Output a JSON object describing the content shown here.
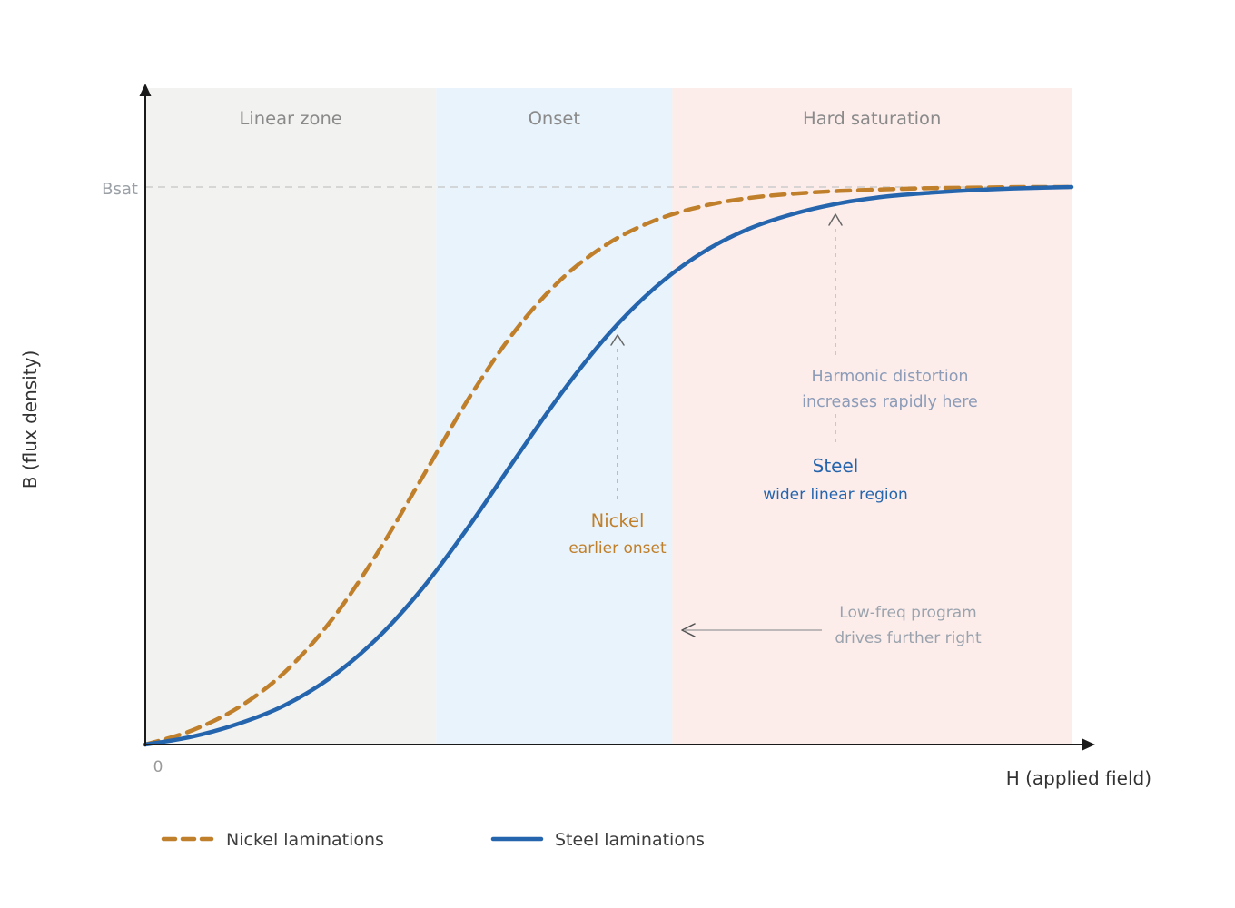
{
  "chart_data": {
    "type": "line",
    "title": "",
    "xlabel": "H (applied field)",
    "ylabel": "B (flux density)",
    "origin_label": "0",
    "bsat": {
      "label": "Bsat",
      "value": 1
    },
    "xlim": [
      0,
      1
    ],
    "ylim": [
      0,
      1.15
    ],
    "grid": false,
    "legend_position": "bottom",
    "x": [
      0,
      0.05,
      0.1,
      0.15,
      0.2,
      0.25,
      0.3,
      0.35,
      0.4,
      0.45,
      0.5,
      0.55,
      0.6,
      0.65,
      0.7,
      0.75,
      0.8,
      0.85,
      0.9,
      0.95,
      1
    ],
    "series": [
      {
        "name": "Nickel laminations",
        "color": "#c07f2a",
        "dash": true,
        "values": [
          0,
          0.025,
          0.066,
          0.129,
          0.221,
          0.342,
          0.482,
          0.623,
          0.744,
          0.836,
          0.899,
          0.94,
          0.965,
          0.98,
          0.988,
          0.993,
          0.996,
          0.998,
          0.999,
          1.0,
          1.0
        ]
      },
      {
        "name": "Steel laminations",
        "color": "#2565ae",
        "dash": false,
        "values": [
          0,
          0.014,
          0.037,
          0.07,
          0.12,
          0.19,
          0.282,
          0.393,
          0.514,
          0.632,
          0.736,
          0.819,
          0.881,
          0.924,
          0.952,
          0.971,
          0.983,
          0.99,
          0.995,
          0.998,
          1.0
        ]
      }
    ],
    "zones": [
      {
        "label": "Linear zone",
        "from": 0,
        "to": 0.314,
        "color": "#f2f2f0"
      },
      {
        "label": "Onset",
        "from": 0.314,
        "to": 0.569,
        "color": "#e9f3fb"
      },
      {
        "label": "Hard saturation",
        "from": 0.569,
        "to": 1,
        "color": "#fcedeb"
      }
    ],
    "annotations": {
      "nickel": {
        "line1": "Nickel",
        "line2": "earlier onset",
        "color": "#c07f2a"
      },
      "steel": {
        "line1": "Steel",
        "line2": "wider linear region",
        "color": "#2565ae"
      },
      "harmonic": {
        "line1": "Harmonic distortion",
        "line2": "increases rapidly here",
        "color": "#8c9cb8"
      },
      "lowfreq": {
        "line1": "Low-freq program",
        "line2": "drives further right",
        "color": "#9aa3ad"
      }
    }
  }
}
